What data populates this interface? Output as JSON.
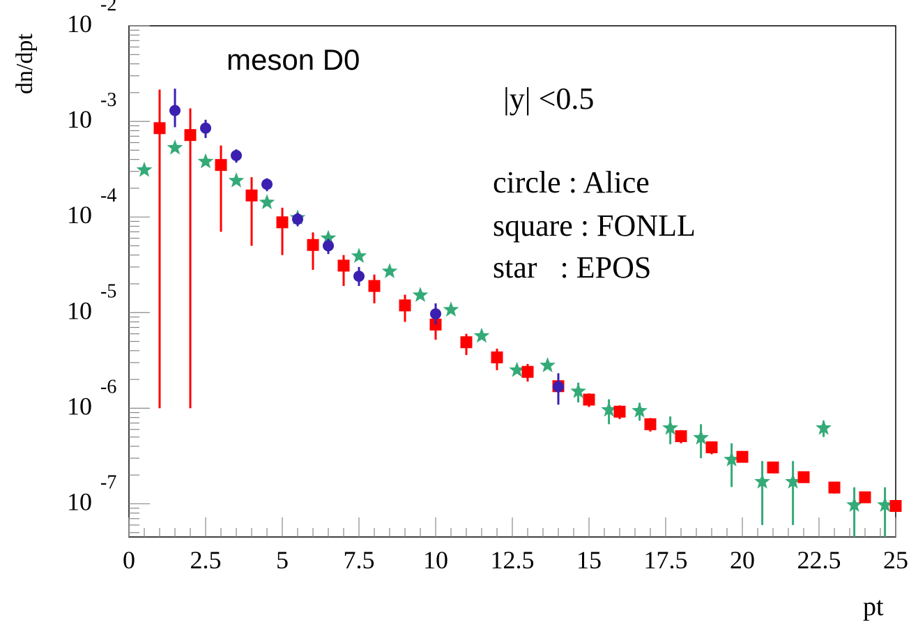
{
  "chart_data": {
    "type": "scatter",
    "title": "meson D0",
    "annotation": "|y| <0.5",
    "xlabel": "pt",
    "ylabel": "dn/dpt",
    "xlim": [
      0,
      25
    ],
    "ylim": [
      4.5e-08,
      0.01
    ],
    "log_y": true,
    "x_ticks": [
      0,
      2.5,
      5,
      7.5,
      10,
      12.5,
      15,
      17.5,
      20,
      22.5,
      25
    ],
    "x_tick_labels": [
      "0",
      "2.5",
      "5",
      "7.5",
      "10",
      "12.5",
      "15",
      "17.5",
      "20",
      "22.5",
      "25"
    ],
    "y_tick_labels": [
      {
        "base": "10",
        "exp": "-2",
        "value": 0.01
      },
      {
        "base": "10",
        "exp": "-3",
        "value": 0.001
      },
      {
        "base": "10",
        "exp": "-4",
        "value": 0.0001
      },
      {
        "base": "10",
        "exp": "-5",
        "value": 1e-05
      },
      {
        "base": "10",
        "exp": "-6",
        "value": 1e-06
      },
      {
        "base": "10",
        "exp": "-7",
        "value": 1e-07
      }
    ],
    "legend": [
      "circle : Alice",
      "square : FONLL",
      "star   : EPOS"
    ],
    "series": [
      {
        "name": "Alice",
        "marker": "circle",
        "color": "#3a1fb0",
        "x": [
          1.5,
          2.5,
          3.5,
          4.5,
          5.5,
          6.5,
          7.5,
          10,
          14
        ],
        "y": [
          0.0013,
          0.00085,
          0.00044,
          0.00022,
          9.5e-05,
          5e-05,
          2.4e-05,
          9.7e-06,
          1.68e-06
        ],
        "yerr_low": [
          0.00043,
          0.00018,
          7e-05,
          3.4e-05,
          1.5e-05,
          9e-06,
          5e-06,
          2.2e-06,
          5.9e-07
        ],
        "yerr_high": [
          0.0009,
          0.00019,
          7e-05,
          3.4e-05,
          1.5e-05,
          9e-06,
          6e-06,
          2.8e-06,
          6.4e-07
        ]
      },
      {
        "name": "FONLL",
        "marker": "square",
        "color": "#ff0000",
        "x": [
          1,
          2,
          3,
          4,
          5,
          6,
          7,
          8,
          9,
          10,
          11,
          12,
          13,
          14,
          15,
          16,
          17,
          18,
          19,
          20,
          21,
          22,
          23,
          24,
          25
        ],
        "y": [
          0.00085,
          0.00072,
          0.00035,
          0.000168,
          8.8e-05,
          5.1e-05,
          3.1e-05,
          1.9e-05,
          1.19e-05,
          7.5e-06,
          4.9e-06,
          3.4e-06,
          2.4e-06,
          1.7e-06,
          1.23e-06,
          9.2e-07,
          6.8e-07,
          5.1e-07,
          3.9e-07,
          3.1e-07,
          2.4e-07,
          1.9e-07,
          1.48e-07,
          1.17e-07,
          9.5e-08
        ],
        "yerr_low": [
          0.000849,
          0.000719,
          0.00028,
          0.000118,
          4.8e-05,
          2.3e-05,
          1.2e-05,
          6.5e-06,
          3.9e-06,
          2.3e-06,
          1.3e-06,
          9e-07,
          5e-07,
          4e-07,
          2e-07,
          1.5e-07,
          1.1e-07,
          8e-08,
          6e-08,
          4e-08,
          3e-08,
          2e-08,
          2e-08,
          1.5e-08,
          1.2e-08
        ],
        "yerr_high": [
          0.0013,
          0.00065,
          0.00021,
          9.3e-05,
          3.7e-05,
          1.8e-05,
          9e-06,
          6e-06,
          3.5e-06,
          2e-06,
          1.1e-06,
          8e-07,
          5e-07,
          4e-07,
          2e-07,
          1.5e-07,
          1.1e-07,
          8e-08,
          6e-08,
          4e-08,
          3e-08,
          2e-08,
          2e-08,
          1.5e-08,
          1.2e-08
        ]
      },
      {
        "name": "EPOS",
        "marker": "star",
        "color": "#33aa77",
        "x": [
          0.5,
          1.5,
          2.5,
          3.5,
          4.5,
          5.5,
          6.5,
          7.5,
          8.5,
          9.5,
          10.5,
          11.5,
          12.65,
          13.65,
          14.65,
          15.65,
          16.65,
          17.65,
          18.65,
          19.65,
          20.65,
          21.65,
          22.65,
          23.65,
          24.65
        ],
        "y": [
          0.00031,
          0.00053,
          0.00038,
          0.00024,
          0.000142,
          9.8e-05,
          6e-05,
          3.9e-05,
          2.7e-05,
          1.52e-05,
          1.07e-05,
          5.7e-06,
          2.5e-06,
          2.8e-06,
          1.5e-06,
          9.6e-07,
          9.4e-07,
          6.2e-07,
          4.9e-07,
          2.9e-07,
          1.7e-07,
          1.7e-07,
          6.2e-07,
          9.7e-08,
          9.7e-08
        ],
        "yerr_low": [
          0,
          0,
          0,
          0,
          0,
          0,
          0,
          0,
          0,
          0,
          0,
          0,
          0,
          0,
          3.5e-07,
          2.8e-07,
          2e-07,
          2e-07,
          1.9e-07,
          1.4e-07,
          1.1e-07,
          1.1e-07,
          1.2e-07,
          5.2e-08,
          5.2e-08
        ],
        "yerr_high": [
          0,
          0,
          0,
          0,
          0,
          0,
          0,
          0,
          0,
          0,
          0,
          0,
          0,
          0,
          3.5e-07,
          2.8e-07,
          2e-07,
          2e-07,
          1.9e-07,
          1.4e-07,
          1.1e-07,
          1.1e-07,
          1.2e-07,
          5.2e-08,
          5.2e-08
        ]
      }
    ]
  }
}
